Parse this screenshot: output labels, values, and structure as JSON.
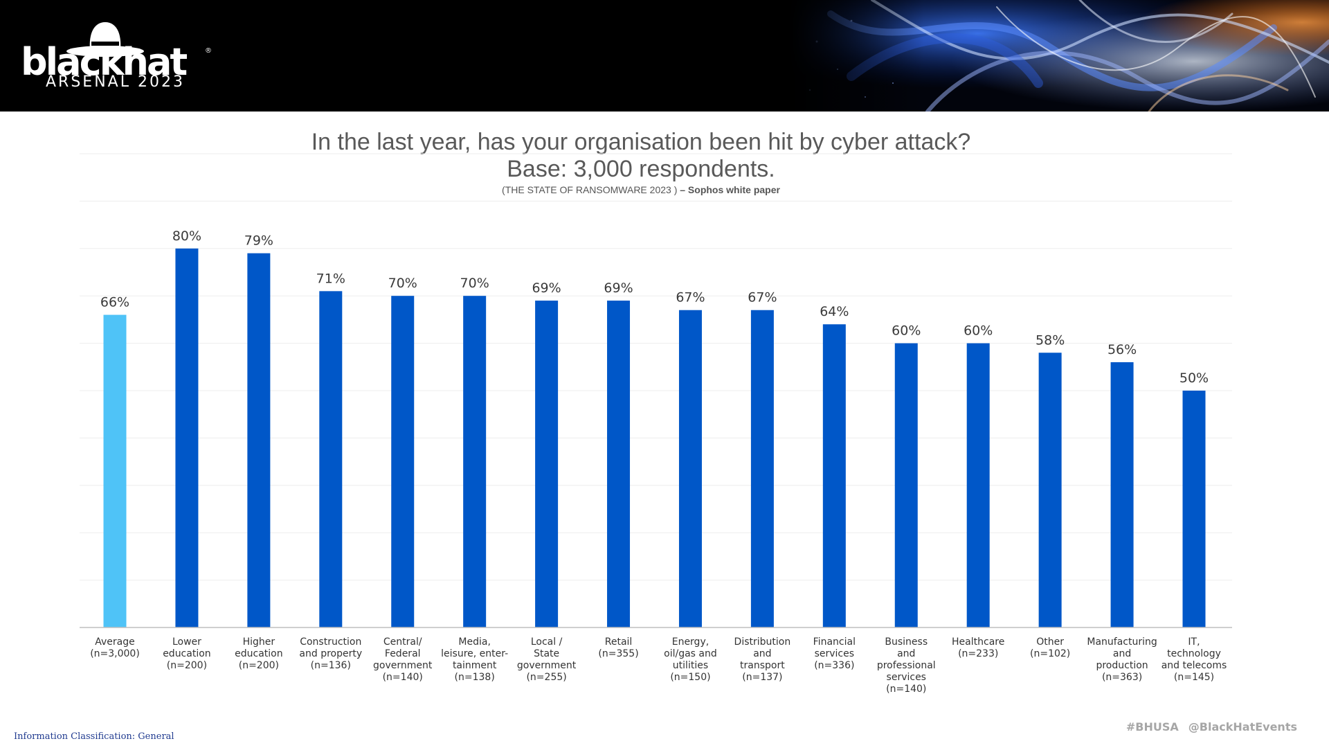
{
  "header": {
    "logo_word": "blackhat",
    "logo_reg": "®",
    "logo_sub": "ARSENAL 2023"
  },
  "title": {
    "line1": "In the last year, has your organisation been hit by cyber attack?",
    "line2": "Base: 3,000 respondents.",
    "source_paren": "(THE STATE OF RANSOMWARE 2023 )",
    "source_rest": " – Sophos white paper"
  },
  "chart_data": {
    "type": "bar",
    "ylim": [
      0,
      100
    ],
    "grid": true,
    "highlight_color": "#4fc3f7",
    "bar_color": "#0057c8",
    "categories": [
      [
        "Average",
        "(n=3,000)"
      ],
      [
        "Lower",
        "education",
        "(n=200)"
      ],
      [
        "Higher",
        "education",
        "(n=200)"
      ],
      [
        "Construction",
        "and property",
        "(n=136)"
      ],
      [
        "Central/",
        "Federal",
        "government",
        "(n=140)"
      ],
      [
        "Media,",
        "leisure, enter-",
        "tainment",
        "(n=138)"
      ],
      [
        "Local /",
        "State",
        "government",
        "(n=255)"
      ],
      [
        "Retail",
        "(n=355)"
      ],
      [
        "Energy,",
        "oil/gas and",
        "utilities",
        "(n=150)"
      ],
      [
        "Distribution",
        "and",
        "transport",
        "(n=137)"
      ],
      [
        "Financial",
        "services",
        "(n=336)"
      ],
      [
        "Business",
        "and",
        "professional",
        "services",
        "(n=140)"
      ],
      [
        "Healthcare",
        "(n=233)"
      ],
      [
        "Other",
        "(n=102)"
      ],
      [
        "Manufacturing",
        "and",
        "production",
        "(n=363)"
      ],
      [
        "IT,",
        "technology",
        "and telecoms",
        "(n=145)"
      ]
    ],
    "values": [
      66,
      80,
      79,
      71,
      70,
      70,
      69,
      69,
      67,
      67,
      64,
      60,
      60,
      58,
      56,
      50
    ],
    "labels": [
      "66%",
      "80%",
      "79%",
      "71%",
      "70%",
      "70%",
      "69%",
      "69%",
      "67%",
      "67%",
      "64%",
      "60%",
      "60%",
      "58%",
      "56%",
      "50%"
    ]
  },
  "footer": {
    "classification": "Information Classification: General",
    "hashtag": "#BHUSA",
    "handle": "@BlackHatEvents"
  }
}
